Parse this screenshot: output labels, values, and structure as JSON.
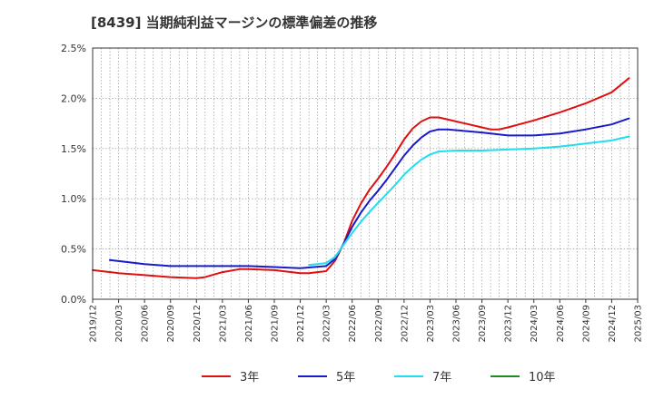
{
  "chart_data": {
    "type": "line",
    "title": "[8439]  当期純利益マージンの標準偏差の推移",
    "x_ticks": [
      "2019/12",
      "2020/03",
      "2020/06",
      "2020/09",
      "2020/12",
      "2021/03",
      "2021/06",
      "2021/09",
      "2021/12",
      "2022/03",
      "2022/06",
      "2022/09",
      "2022/12",
      "2023/03",
      "2023/06",
      "2023/09",
      "2023/12",
      "2024/03",
      "2024/06",
      "2024/09",
      "2024/12",
      "2025/03"
    ],
    "y_ticks": [
      "0.0%",
      "0.5%",
      "1.0%",
      "1.5%",
      "2.0%",
      "2.5%"
    ],
    "ylim": [
      0,
      2.5
    ],
    "y_unit": "%",
    "grid": true,
    "legend_position": "bottom",
    "series": [
      {
        "name": "3年",
        "color": "#dd1111",
        "points": [
          [
            "2019/12",
            0.29
          ],
          [
            "2020/03",
            0.26
          ],
          [
            "2020/06",
            0.24
          ],
          [
            "2020/09",
            0.22
          ],
          [
            "2020/12",
            0.21
          ],
          [
            "2021/01",
            0.22
          ],
          [
            "2021/03",
            0.27
          ],
          [
            "2021/05",
            0.3
          ],
          [
            "2021/06",
            0.3
          ],
          [
            "2021/09",
            0.29
          ],
          [
            "2021/12",
            0.26
          ],
          [
            "2022/01",
            0.26
          ],
          [
            "2022/03",
            0.28
          ],
          [
            "2022/04",
            0.38
          ],
          [
            "2022/05",
            0.55
          ],
          [
            "2022/06",
            0.78
          ],
          [
            "2022/07",
            0.95
          ],
          [
            "2022/08",
            1.09
          ],
          [
            "2022/09",
            1.2
          ],
          [
            "2022/10",
            1.32
          ],
          [
            "2022/11",
            1.45
          ],
          [
            "2022/12",
            1.59
          ],
          [
            "2023/01",
            1.7
          ],
          [
            "2023/02",
            1.77
          ],
          [
            "2023/03",
            1.81
          ],
          [
            "2023/04",
            1.81
          ],
          [
            "2023/06",
            1.77
          ],
          [
            "2023/09",
            1.71
          ],
          [
            "2023/10",
            1.69
          ],
          [
            "2023/11",
            1.69
          ],
          [
            "2023/12",
            1.71
          ],
          [
            "2024/03",
            1.78
          ],
          [
            "2024/06",
            1.86
          ],
          [
            "2024/09",
            1.95
          ],
          [
            "2024/12",
            2.06
          ],
          [
            "2025/02",
            2.2
          ]
        ]
      },
      {
        "name": "5年",
        "color": "#1a1acc",
        "points": [
          [
            "2020/02",
            0.39
          ],
          [
            "2020/03",
            0.38
          ],
          [
            "2020/06",
            0.35
          ],
          [
            "2020/09",
            0.33
          ],
          [
            "2020/12",
            0.33
          ],
          [
            "2021/03",
            0.33
          ],
          [
            "2021/06",
            0.33
          ],
          [
            "2021/09",
            0.32
          ],
          [
            "2021/12",
            0.31
          ],
          [
            "2022/03",
            0.33
          ],
          [
            "2022/04",
            0.4
          ],
          [
            "2022/05",
            0.55
          ],
          [
            "2022/06",
            0.72
          ],
          [
            "2022/07",
            0.86
          ],
          [
            "2022/08",
            0.98
          ],
          [
            "2022/09",
            1.08
          ],
          [
            "2022/10",
            1.19
          ],
          [
            "2022/11",
            1.31
          ],
          [
            "2022/12",
            1.43
          ],
          [
            "2023/01",
            1.53
          ],
          [
            "2023/02",
            1.61
          ],
          [
            "2023/03",
            1.67
          ],
          [
            "2023/04",
            1.69
          ],
          [
            "2023/05",
            1.69
          ],
          [
            "2023/09",
            1.66
          ],
          [
            "2023/12",
            1.63
          ],
          [
            "2024/03",
            1.63
          ],
          [
            "2024/06",
            1.65
          ],
          [
            "2024/09",
            1.69
          ],
          [
            "2024/12",
            1.74
          ],
          [
            "2025/02",
            1.8
          ]
        ]
      },
      {
        "name": "7年",
        "color": "#22ddee",
        "points": [
          [
            "2022/01",
            0.34
          ],
          [
            "2022/03",
            0.36
          ],
          [
            "2022/04",
            0.42
          ],
          [
            "2022/05",
            0.54
          ],
          [
            "2022/06",
            0.66
          ],
          [
            "2022/07",
            0.77
          ],
          [
            "2022/08",
            0.87
          ],
          [
            "2022/09",
            0.96
          ],
          [
            "2022/10",
            1.05
          ],
          [
            "2022/11",
            1.14
          ],
          [
            "2022/12",
            1.24
          ],
          [
            "2023/01",
            1.32
          ],
          [
            "2023/02",
            1.39
          ],
          [
            "2023/03",
            1.44
          ],
          [
            "2023/04",
            1.47
          ],
          [
            "2023/06",
            1.48
          ],
          [
            "2023/09",
            1.48
          ],
          [
            "2023/12",
            1.49
          ],
          [
            "2024/03",
            1.5
          ],
          [
            "2024/06",
            1.52
          ],
          [
            "2024/09",
            1.55
          ],
          [
            "2024/12",
            1.58
          ],
          [
            "2025/02",
            1.62
          ]
        ]
      },
      {
        "name": "10年",
        "color": "#228822",
        "points": []
      }
    ]
  }
}
